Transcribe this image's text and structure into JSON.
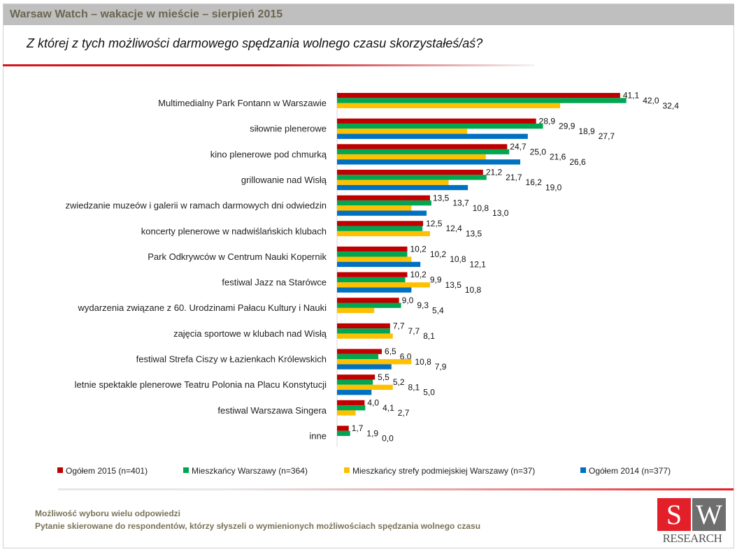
{
  "header": {
    "title": "Warsaw Watch – wakacje w mieście – sierpień 2015"
  },
  "footer": {
    "note1": "Możliwość wyboru wielu odpowiedzi",
    "note2": "Pytanie skierowane do respondentów, którzy słyszeli o wymienionych możliwościach spędzania wolnego czasu"
  },
  "logo": {
    "s": "S",
    "w": "W",
    "text": "RESEARCH"
  },
  "chart_data": {
    "type": "bar",
    "orientation": "horizontal",
    "title": "Z której z tych możliwości darmowego spędzania wolnego czasu skorzystałeś/aś?",
    "xlim": [
      0,
      45
    ],
    "grid": false,
    "legend_position": "bottom",
    "categories": [
      "Multimedialny Park Fontann w Warszawie",
      "siłownie plenerowe",
      "kino plenerowe pod chmurką",
      "grillowanie nad Wisłą",
      "zwiedzanie muzeów i galerii w ramach darmowych dni odwiedzin",
      "koncerty plenerowe w nadwiślańskich klubach",
      "Park Odkrywców w Centrum Nauki Kopernik",
      "festiwal Jazz na Starówce",
      "wydarzenia związane z 60. Urodzinami Pałacu Kultury i Nauki",
      "zajęcia sportowe w klubach nad Wisłą",
      "festiwal Strefa Ciszy w Łazienkach Królewskich",
      "letnie spektakle plenerowe Teatru Polonia na Placu Konstytucji",
      "festiwal Warszawa Singera",
      "inne"
    ],
    "series": [
      {
        "name": "Ogółem 2015 (n=401)",
        "color": "#c00000",
        "values": [
          41.1,
          28.9,
          24.7,
          21.2,
          13.5,
          12.5,
          10.2,
          10.2,
          9.0,
          7.7,
          6.5,
          5.5,
          4.0,
          1.7
        ]
      },
      {
        "name": "Mieszkańcy Warszawy (n=364)",
        "color": "#00a650",
        "values": [
          42.0,
          29.9,
          25.0,
          21.7,
          13.7,
          12.4,
          10.2,
          9.9,
          9.3,
          7.7,
          6.0,
          5.2,
          4.1,
          1.9
        ]
      },
      {
        "name": "Mieszkańcy strefy podmiejskiej Warszawy (n=37)",
        "color": "#ffc000",
        "values": [
          32.4,
          18.9,
          21.6,
          16.2,
          10.8,
          13.5,
          10.8,
          13.5,
          5.4,
          8.1,
          10.8,
          8.1,
          2.7,
          0.0
        ]
      },
      {
        "name": "Ogółem 2014 (n=377)",
        "color": "#0070c0",
        "values": [
          null,
          27.7,
          26.6,
          19.0,
          13.0,
          null,
          12.1,
          10.8,
          null,
          null,
          7.9,
          5.0,
          null,
          null
        ]
      }
    ]
  }
}
